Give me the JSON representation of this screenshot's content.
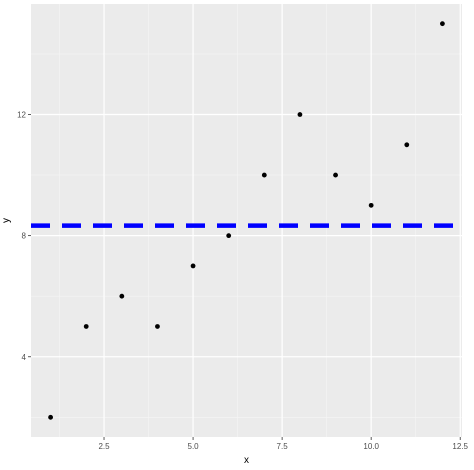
{
  "chart_data": {
    "type": "scatter",
    "title": "",
    "xlabel": "x",
    "ylabel": "y",
    "xlim": [
      0.45,
      12.55
    ],
    "ylim": [
      1.35,
      15.65
    ],
    "x_ticks": [
      2.5,
      5.0,
      7.5,
      10.0,
      12.5
    ],
    "x_tick_labels": [
      "2.5",
      "5.0",
      "7.5",
      "10.0",
      "12.5"
    ],
    "y_ticks": [
      4,
      8,
      12
    ],
    "y_tick_labels": [
      "4",
      "8",
      "12"
    ],
    "grid": true,
    "legend": "none",
    "series": [
      {
        "x": [
          1,
          2,
          3,
          4,
          5,
          6,
          7,
          8,
          9,
          10,
          11,
          12
        ],
        "y": [
          2,
          5,
          6,
          5,
          7,
          8,
          10,
          12,
          10,
          9,
          11,
          15
        ],
        "color": "#000000"
      }
    ],
    "reference_line": {
      "orientation": "horizontal",
      "y": 8.33,
      "color": "#0000ff",
      "style": "dashed"
    },
    "colors": {
      "panel_background": "#ebebeb",
      "grid_major": "#ffffff",
      "grid_minor": "#f5f5f5"
    }
  }
}
